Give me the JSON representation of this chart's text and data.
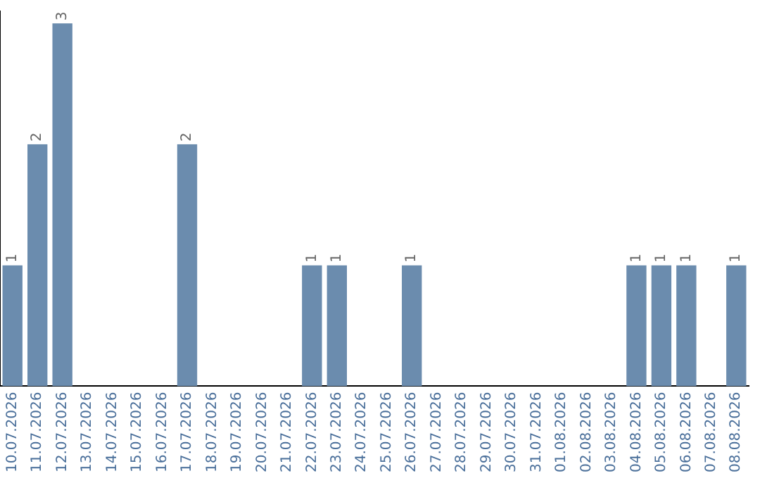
{
  "chart_data": {
    "type": "bar",
    "categories": [
      "10.07.2026",
      "11.07.2026",
      "12.07.2026",
      "13.07.2026",
      "14.07.2026",
      "15.07.2026",
      "16.07.2026",
      "17.07.2026",
      "18.07.2026",
      "19.07.2026",
      "20.07.2026",
      "21.07.2026",
      "22.07.2026",
      "23.07.2026",
      "24.07.2026",
      "25.07.2026",
      "26.07.2026",
      "27.07.2026",
      "28.07.2026",
      "29.07.2026",
      "30.07.2026",
      "31.07.2026",
      "01.08.2026",
      "02.08.2026",
      "03.08.2026",
      "04.08.2026",
      "05.08.2026",
      "06.08.2026",
      "07.08.2026",
      "08.08.2026"
    ],
    "values": [
      1,
      2,
      3,
      0,
      0,
      0,
      0,
      2,
      0,
      0,
      0,
      0,
      1,
      1,
      0,
      0,
      1,
      0,
      0,
      0,
      0,
      0,
      0,
      0,
      0,
      1,
      1,
      1,
      0,
      1
    ],
    "value_labels": [
      "1",
      "2",
      "3",
      null,
      null,
      null,
      null,
      "2",
      null,
      null,
      null,
      null,
      "1",
      "1",
      null,
      null,
      "1",
      null,
      null,
      null,
      null,
      null,
      null,
      null,
      null,
      "1",
      "1",
      "1",
      null,
      "1"
    ],
    "color": "#6b8cae",
    "ylim": [
      0,
      3.1
    ],
    "tick_labels": "x",
    "grid": false,
    "legend": false
  }
}
